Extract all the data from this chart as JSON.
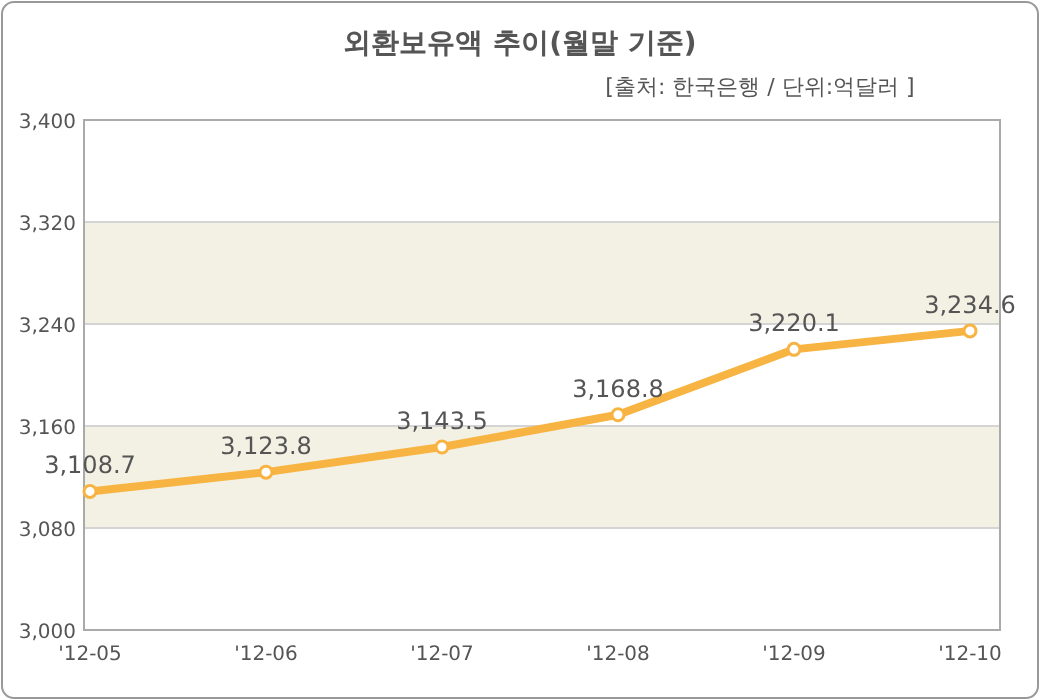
{
  "chart_data": {
    "type": "line",
    "title": "외환보유액 추이(월말 기준)",
    "subtitle": "[출처: 한국은행 / 단위:억달러 ]",
    "categories": [
      "'12-05",
      "'12-06",
      "'12-07",
      "'12-08",
      "'12-09",
      "'12-10"
    ],
    "series": [
      {
        "color": "#f7b442",
        "values": [
          3108.7,
          3123.8,
          3143.5,
          3168.8,
          3220.1,
          3234.6
        ],
        "value_labels": [
          "3,108.7",
          "3,123.8",
          "3,143.5",
          "3,168.8",
          "3,220.1",
          "3,234.6"
        ]
      }
    ],
    "ylim": [
      3000,
      3400
    ],
    "yticks": [
      {
        "value": 3000,
        "label": "3,000"
      },
      {
        "value": 3080,
        "label": "3,080"
      },
      {
        "value": 3160,
        "label": "3,160"
      },
      {
        "value": 3240,
        "label": "3,240"
      },
      {
        "value": 3320,
        "label": "3,320"
      },
      {
        "value": 3400,
        "label": "3,400"
      }
    ],
    "bands": [
      {
        "axis": "y",
        "from": 3080,
        "to": 3160,
        "color": "#f3f1e4"
      },
      {
        "axis": "y",
        "from": 3240,
        "to": 3320,
        "color": "#f3f1e4"
      }
    ],
    "grid": "y",
    "marker": "circle"
  }
}
